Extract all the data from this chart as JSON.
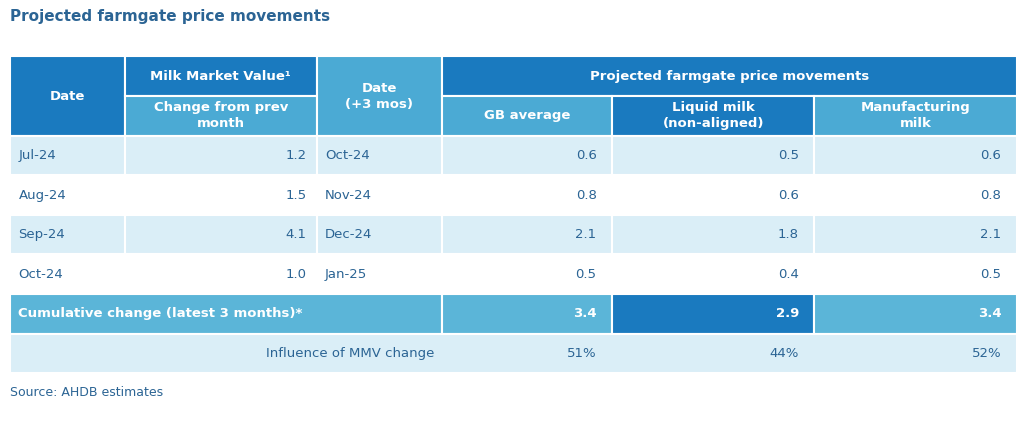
{
  "title": "Projected farmgate price movements",
  "source": "Source: AHDB estimates",
  "header_bg_dark": "#1a7abf",
  "header_bg_medium": "#4baad4",
  "row_bg_white": "#ffffff",
  "row_bg_light": "#daeef7",
  "cumulative_bg": "#5bb5d8",
  "cumulative_dark": "#1a7abf",
  "text_white": "#ffffff",
  "text_dark": "#2b6494",
  "outer_bg": "#ffffff",
  "date_col": [
    "Jul-24",
    "Aug-24",
    "Sep-24",
    "Oct-24"
  ],
  "mmv_col": [
    "1.2",
    "1.5",
    "4.1",
    "1.0"
  ],
  "date3_col": [
    "Oct-24",
    "Nov-24",
    "Dec-24",
    "Jan-25"
  ],
  "gb_col": [
    "0.6",
    "0.8",
    "2.1",
    "0.5"
  ],
  "liquid_col": [
    "0.5",
    "0.6",
    "1.8",
    "0.4"
  ],
  "manuf_col": [
    "0.6",
    "0.8",
    "2.1",
    "0.5"
  ],
  "cumulative_label": "Cumulative change (latest 3 months)*",
  "cumulative_gb": "3.4",
  "cumulative_liquid": "2.9",
  "cumulative_manuf": "3.4",
  "influence_label": "Influence of MMV change",
  "influence_gb": "51%",
  "influence_liquid": "44%",
  "influence_manuf": "52%"
}
